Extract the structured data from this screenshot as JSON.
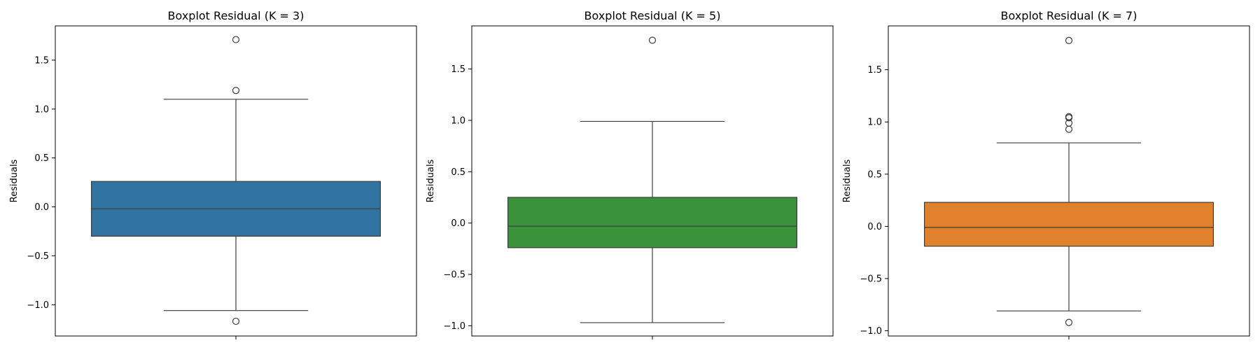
{
  "chart_data": [
    {
      "type": "boxplot",
      "title": "Boxplot Residual (K = 3)",
      "ylabel": "Residuals",
      "xlabel": "",
      "ylim": [
        -1.32,
        1.85
      ],
      "yticks": [
        -1.0,
        -0.5,
        0.0,
        0.5,
        1.0,
        1.5
      ],
      "ytick_labels": [
        "−1.0",
        "−0.5",
        "0.0",
        "0.5",
        "1.0",
        "1.5"
      ],
      "color": "#3274a1",
      "box": {
        "whisker_low": -1.06,
        "q1": -0.3,
        "median": -0.02,
        "q3": 0.26,
        "whisker_high": 1.1
      },
      "outliers": [
        1.71,
        1.19,
        -1.17
      ]
    },
    {
      "type": "boxplot",
      "title": "Boxplot Residual (K = 5)",
      "ylabel": "Residuals",
      "xlabel": "",
      "ylim": [
        -1.1,
        1.92
      ],
      "yticks": [
        -1.0,
        -0.5,
        0.0,
        0.5,
        1.0,
        1.5
      ],
      "ytick_labels": [
        "−1.0",
        "−0.5",
        "0.0",
        "0.5",
        "1.0",
        "1.5"
      ],
      "color": "#3a923a",
      "box": {
        "whisker_low": -0.97,
        "q1": -0.24,
        "median": -0.03,
        "q3": 0.25,
        "whisker_high": 0.99
      },
      "outliers": [
        1.78
      ]
    },
    {
      "type": "boxplot",
      "title": "Boxplot Residual (K = 7)",
      "ylabel": "Residuals",
      "xlabel": "",
      "ylim": [
        -1.05,
        1.92
      ],
      "yticks": [
        -1.0,
        -0.5,
        0.0,
        0.5,
        1.0,
        1.5
      ],
      "ytick_labels": [
        "−1.0",
        "−0.5",
        "0.0",
        "0.5",
        "1.0",
        "1.5"
      ],
      "color": "#e1812c",
      "box": {
        "whisker_low": -0.81,
        "q1": -0.19,
        "median": -0.01,
        "q3": 0.23,
        "whisker_high": 0.8
      },
      "outliers": [
        1.78,
        1.05,
        1.04,
        0.99,
        0.93,
        -0.92
      ]
    }
  ]
}
